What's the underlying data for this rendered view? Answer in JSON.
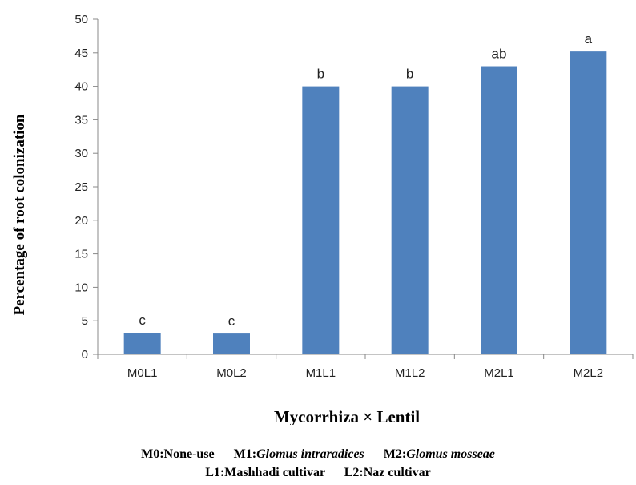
{
  "chart_data": {
    "type": "bar",
    "categories": [
      "M0L1",
      "M0L2",
      "M1L1",
      "M1L2",
      "M2L1",
      "M2L2"
    ],
    "values": [
      3.2,
      3.1,
      40,
      40,
      43,
      45.2
    ],
    "data_labels": [
      "c",
      "c",
      "b",
      "b",
      "ab",
      "a"
    ],
    "ylabel": "Percentage of root colonization",
    "xlabel": "Mycorrhiza × Lentil",
    "ylim": [
      0,
      50
    ],
    "yticks": [
      0,
      5,
      10,
      15,
      20,
      25,
      30,
      35,
      40,
      45,
      50
    ],
    "bar_color": "#4F81BD",
    "grid": false,
    "legend": "none"
  },
  "footnote": {
    "line1": [
      {
        "key": "M0:",
        "text": "None-use"
      },
      {
        "key": "M1:",
        "text": "Glomus intraradices"
      },
      {
        "key": "M2:",
        "text": "Glomus mosseae"
      }
    ],
    "line2": [
      {
        "key": "L1:",
        "text": "Mashhadi cultivar"
      },
      {
        "key": "L2:",
        "text": "Naz cultivar"
      }
    ]
  }
}
